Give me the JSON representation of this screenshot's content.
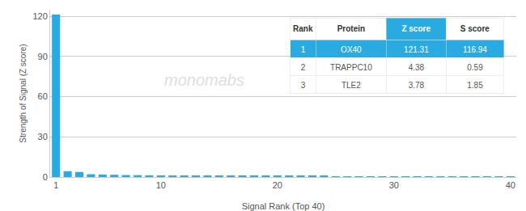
{
  "chart_data": {
    "type": "bar",
    "x": [
      1,
      2,
      3,
      4,
      5,
      6,
      7,
      8,
      9,
      10,
      11,
      12,
      13,
      14,
      15,
      16,
      17,
      18,
      19,
      20,
      21,
      22,
      23,
      24,
      25,
      26,
      27,
      28,
      29,
      30,
      31,
      32,
      33,
      34,
      35,
      36,
      37,
      38,
      39,
      40
    ],
    "values": [
      121.31,
      4.38,
      3.78,
      2.1,
      1.9,
      1.7,
      1.5,
      1.4,
      1.3,
      1.2,
      1.1,
      1.0,
      0.95,
      0.9,
      0.85,
      0.8,
      0.78,
      0.75,
      0.72,
      0.7,
      0.68,
      0.66,
      0.64,
      0.62,
      0.6,
      0.58,
      0.56,
      0.54,
      0.52,
      0.5,
      0.48,
      0.46,
      0.44,
      0.42,
      0.4,
      0.38,
      0.36,
      0.34,
      0.32,
      0.3
    ],
    "color": "#29abe2",
    "xlim": [
      0.5,
      40.5
    ],
    "ylim": [
      0,
      125
    ],
    "xticks": [
      1,
      10,
      20,
      30,
      40
    ],
    "yticks": [
      0,
      30,
      60,
      90,
      120
    ],
    "xlabel": "Signal Rank (Top 40)",
    "ylabel": "Strength of Signal (Z score)",
    "grid": true,
    "annotations": [
      "monomabs"
    ],
    "table": [
      [
        "Rank",
        "Protein",
        "Z score",
        "S score"
      ],
      [
        "1",
        "OX40",
        "121.31",
        "116.94"
      ],
      [
        "2",
        "TRAPPC10",
        "4.38",
        "0.59"
      ],
      [
        "3",
        "TLE2",
        "3.78",
        "1.85"
      ]
    ]
  }
}
